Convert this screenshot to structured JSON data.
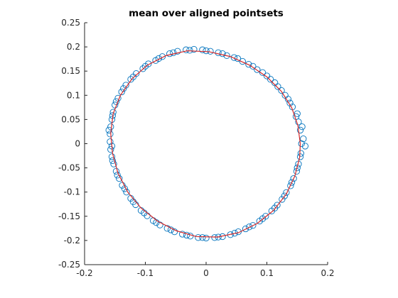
{
  "chart_data": {
    "type": "scatter",
    "title": "mean over aligned pointsets",
    "xlabel": "",
    "ylabel": "",
    "xlim": [
      -0.2,
      0.2
    ],
    "ylim": [
      -0.25,
      0.25
    ],
    "xticks": [
      -0.2,
      -0.1,
      0,
      0.1,
      0.2
    ],
    "xtick_labels": [
      "-0.2",
      "-0.1",
      "0",
      "0.1",
      "0.2"
    ],
    "yticks": [
      -0.25,
      -0.2,
      -0.15,
      -0.1,
      -0.05,
      0,
      0.05,
      0.1,
      0.15,
      0.2,
      0.25
    ],
    "ytick_labels": [
      "-0.25",
      "-0.2",
      "-0.15",
      "-0.1",
      "-0.05",
      "0",
      "0.05",
      "0.1",
      "0.15",
      "0.2",
      "0.25"
    ],
    "grid": false,
    "legend": "none",
    "marker": "open-circle",
    "series": [
      {
        "kind": "scatter",
        "color": "#0072BD",
        "points": [
          [
            0.157,
            0.0
          ],
          [
            0.155,
            0.028
          ],
          [
            0.148,
            0.056
          ],
          [
            0.138,
            0.084
          ],
          [
            0.124,
            0.11
          ],
          [
            0.106,
            0.133
          ],
          [
            0.084,
            0.153
          ],
          [
            0.06,
            0.17
          ],
          [
            0.034,
            0.182
          ],
          [
            0.007,
            0.191
          ],
          [
            -0.02,
            0.195
          ],
          [
            -0.047,
            0.191
          ],
          [
            -0.072,
            0.18
          ],
          [
            -0.095,
            0.165
          ],
          [
            -0.115,
            0.145
          ],
          [
            -0.132,
            0.121
          ],
          [
            -0.145,
            0.094
          ],
          [
            -0.153,
            0.065
          ],
          [
            -0.157,
            0.035
          ],
          [
            -0.158,
            0.004
          ],
          [
            -0.155,
            -0.027
          ],
          [
            -0.148,
            -0.057
          ],
          [
            -0.138,
            -0.086
          ],
          [
            -0.124,
            -0.113
          ],
          [
            -0.107,
            -0.138
          ],
          [
            -0.087,
            -0.159
          ],
          [
            -0.064,
            -0.175
          ],
          [
            -0.039,
            -0.187
          ],
          [
            -0.013,
            -0.194
          ],
          [
            0.014,
            -0.194
          ],
          [
            0.04,
            -0.188
          ],
          [
            0.065,
            -0.176
          ],
          [
            0.088,
            -0.16
          ],
          [
            0.108,
            -0.139
          ],
          [
            0.125,
            -0.115
          ],
          [
            0.139,
            -0.087
          ],
          [
            0.149,
            -0.057
          ],
          [
            0.155,
            -0.027
          ],
          [
            0.16,
            0.01
          ],
          [
            0.152,
            0.045
          ],
          [
            0.142,
            0.076
          ],
          [
            0.13,
            0.1
          ],
          [
            0.113,
            0.126
          ],
          [
            0.093,
            0.147
          ],
          [
            0.07,
            0.164
          ],
          [
            0.046,
            0.178
          ],
          [
            0.02,
            0.188
          ],
          [
            -0.006,
            0.194
          ],
          [
            -0.033,
            0.194
          ],
          [
            -0.06,
            0.186
          ],
          [
            -0.083,
            0.172
          ],
          [
            -0.104,
            0.155
          ],
          [
            -0.124,
            0.133
          ],
          [
            -0.139,
            0.107
          ],
          [
            -0.15,
            0.08
          ],
          [
            -0.155,
            0.05
          ],
          [
            -0.158,
            0.02
          ],
          [
            -0.157,
            -0.012
          ],
          [
            -0.152,
            -0.042
          ],
          [
            -0.143,
            -0.072
          ],
          [
            -0.131,
            -0.1
          ],
          [
            -0.116,
            -0.126
          ],
          [
            -0.097,
            -0.149
          ],
          [
            -0.076,
            -0.168
          ],
          [
            -0.052,
            -0.182
          ],
          [
            -0.026,
            -0.191
          ],
          [
            0.0,
            -0.195
          ],
          [
            0.027,
            -0.192
          ],
          [
            0.053,
            -0.182
          ],
          [
            0.077,
            -0.169
          ],
          [
            0.098,
            -0.15
          ],
          [
            0.117,
            -0.127
          ],
          [
            0.132,
            -0.101
          ],
          [
            0.144,
            -0.072
          ],
          [
            0.152,
            -0.042
          ],
          [
            0.163,
            -0.005
          ],
          [
            0.158,
            0.035
          ],
          [
            0.15,
            0.062
          ],
          [
            0.135,
            0.092
          ],
          [
            0.118,
            0.118
          ],
          [
            0.1,
            0.14
          ],
          [
            0.077,
            0.16
          ],
          [
            0.052,
            0.176
          ],
          [
            0.027,
            0.186
          ],
          [
            0.0,
            0.192
          ],
          [
            -0.027,
            0.193
          ],
          [
            -0.054,
            0.188
          ],
          [
            -0.078,
            0.176
          ],
          [
            -0.1,
            0.16
          ],
          [
            -0.12,
            0.138
          ],
          [
            -0.136,
            0.114
          ],
          [
            -0.148,
            0.087
          ],
          [
            -0.154,
            0.058
          ],
          [
            -0.16,
            0.028
          ],
          [
            -0.155,
            -0.005
          ],
          [
            -0.154,
            -0.035
          ],
          [
            -0.146,
            -0.065
          ],
          [
            -0.134,
            -0.093
          ],
          [
            -0.12,
            -0.12
          ],
          [
            -0.102,
            -0.143
          ],
          [
            -0.082,
            -0.163
          ],
          [
            -0.058,
            -0.178
          ],
          [
            -0.032,
            -0.189
          ],
          [
            -0.006,
            -0.194
          ],
          [
            0.02,
            -0.193
          ],
          [
            0.047,
            -0.185
          ],
          [
            0.071,
            -0.172
          ],
          [
            0.093,
            -0.155
          ],
          [
            0.113,
            -0.133
          ],
          [
            0.129,
            -0.108
          ],
          [
            0.141,
            -0.08
          ],
          [
            0.15,
            -0.05
          ],
          [
            0.156,
            -0.02
          ]
        ]
      },
      {
        "kind": "line",
        "color": "#D62728",
        "closed": true,
        "points": [
          [
            0.155,
            0.0
          ],
          [
            0.151,
            0.038
          ],
          [
            0.141,
            0.074
          ],
          [
            0.124,
            0.108
          ],
          [
            0.1,
            0.138
          ],
          [
            0.072,
            0.162
          ],
          [
            0.04,
            0.18
          ],
          [
            0.005,
            0.19
          ],
          [
            -0.031,
            0.192
          ],
          [
            -0.066,
            0.182
          ],
          [
            -0.097,
            0.162
          ],
          [
            -0.122,
            0.134
          ],
          [
            -0.141,
            0.1
          ],
          [
            -0.153,
            0.062
          ],
          [
            -0.157,
            0.021
          ],
          [
            -0.154,
            -0.02
          ],
          [
            -0.145,
            -0.061
          ],
          [
            -0.129,
            -0.1
          ],
          [
            -0.107,
            -0.133
          ],
          [
            -0.08,
            -0.16
          ],
          [
            -0.049,
            -0.18
          ],
          [
            -0.016,
            -0.192
          ],
          [
            0.019,
            -0.193
          ],
          [
            0.053,
            -0.184
          ],
          [
            0.084,
            -0.165
          ],
          [
            0.111,
            -0.138
          ],
          [
            0.132,
            -0.104
          ],
          [
            0.146,
            -0.067
          ],
          [
            0.154,
            -0.028
          ]
        ]
      }
    ]
  }
}
